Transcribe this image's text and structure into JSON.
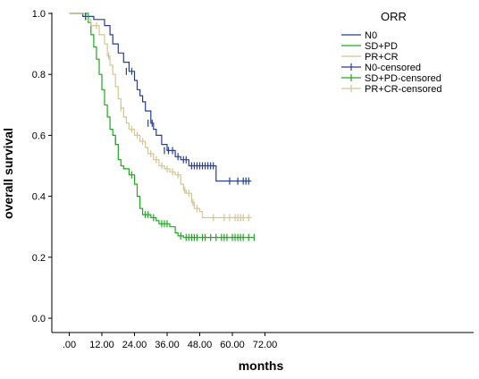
{
  "chart_data": {
    "type": "line",
    "subtype": "kaplan-meier step curves with censor marks",
    "title": "",
    "xlabel": "months",
    "ylabel": "overall survival",
    "xlim": [
      -2,
      72
    ],
    "ylim": [
      0.0,
      1.0
    ],
    "x_ticks": [
      0,
      12,
      24,
      36,
      48,
      60,
      72
    ],
    "x_tick_labels": [
      ".00",
      "12.00",
      "24.00",
      "36.00",
      "48.00",
      "60.00",
      "72.00"
    ],
    "y_ticks": [
      0.0,
      0.2,
      0.4,
      0.6,
      0.8,
      1.0
    ],
    "y_tick_labels": [
      "0.0",
      "0.2",
      "0.4",
      "0.6",
      "0.8",
      "1.0"
    ],
    "grid": false,
    "legend": {
      "title": "ORR",
      "placement": "top-right",
      "entries": [
        "N0",
        "SD+PD",
        "PR+CR",
        "N0-censored",
        "SD+PD-censored",
        "PR+CR-censored"
      ]
    },
    "series": [
      {
        "name": "N0",
        "color": "#2a3f8f",
        "steps": [
          [
            0,
            1.0
          ],
          [
            5,
            0.99
          ],
          [
            9,
            0.98
          ],
          [
            13,
            0.96
          ],
          [
            15,
            0.93
          ],
          [
            16,
            0.9
          ],
          [
            18,
            0.87
          ],
          [
            20,
            0.84
          ],
          [
            22,
            0.81
          ],
          [
            24,
            0.78
          ],
          [
            25,
            0.75
          ],
          [
            26,
            0.73
          ],
          [
            27,
            0.71
          ],
          [
            28,
            0.68
          ],
          [
            30,
            0.64
          ],
          [
            31,
            0.62
          ],
          [
            32,
            0.6
          ],
          [
            34,
            0.57
          ],
          [
            36,
            0.55
          ],
          [
            39,
            0.53
          ],
          [
            41,
            0.52
          ],
          [
            44,
            0.5
          ],
          [
            54,
            0.45
          ],
          [
            67,
            0.45
          ]
        ],
        "censored": [
          [
            6,
            0.99
          ],
          [
            21,
            0.81
          ],
          [
            23,
            0.81
          ],
          [
            29,
            0.64
          ],
          [
            30.5,
            0.64
          ],
          [
            35,
            0.55
          ],
          [
            36.5,
            0.55
          ],
          [
            38,
            0.55
          ],
          [
            40,
            0.53
          ],
          [
            42,
            0.52
          ],
          [
            43,
            0.52
          ],
          [
            45,
            0.5
          ],
          [
            46,
            0.5
          ],
          [
            47,
            0.5
          ],
          [
            48,
            0.5
          ],
          [
            49,
            0.5
          ],
          [
            50,
            0.5
          ],
          [
            51,
            0.5
          ],
          [
            52,
            0.5
          ],
          [
            53,
            0.5
          ],
          [
            59,
            0.45
          ],
          [
            62,
            0.45
          ],
          [
            64,
            0.45
          ],
          [
            65,
            0.45
          ],
          [
            66,
            0.45
          ]
        ]
      },
      {
        "name": "SD+PD",
        "color": "#1eaa1e",
        "steps": [
          [
            0,
            1.0
          ],
          [
            7,
            0.97
          ],
          [
            8,
            0.93
          ],
          [
            9,
            0.89
          ],
          [
            10,
            0.85
          ],
          [
            11,
            0.8
          ],
          [
            12,
            0.75
          ],
          [
            13,
            0.7
          ],
          [
            14,
            0.66
          ],
          [
            15,
            0.62
          ],
          [
            16,
            0.6
          ],
          [
            17,
            0.57
          ],
          [
            18,
            0.52
          ],
          [
            19,
            0.5
          ],
          [
            20,
            0.49
          ],
          [
            22,
            0.47
          ],
          [
            24,
            0.44
          ],
          [
            25,
            0.4
          ],
          [
            26,
            0.36
          ],
          [
            27,
            0.34
          ],
          [
            30,
            0.33
          ],
          [
            32,
            0.32
          ],
          [
            33,
            0.31
          ],
          [
            37,
            0.3
          ],
          [
            39,
            0.28
          ],
          [
            40,
            0.27
          ],
          [
            42,
            0.265
          ],
          [
            68,
            0.265
          ]
        ],
        "censored": [
          [
            17,
            0.58
          ],
          [
            23,
            0.47
          ],
          [
            28,
            0.34
          ],
          [
            29,
            0.34
          ],
          [
            31,
            0.33
          ],
          [
            34,
            0.31
          ],
          [
            35,
            0.31
          ],
          [
            36,
            0.31
          ],
          [
            41,
            0.27
          ],
          [
            43,
            0.265
          ],
          [
            44,
            0.265
          ],
          [
            45,
            0.265
          ],
          [
            46,
            0.265
          ],
          [
            47,
            0.265
          ],
          [
            49,
            0.265
          ],
          [
            50,
            0.265
          ],
          [
            52,
            0.265
          ],
          [
            54,
            0.265
          ],
          [
            56,
            0.265
          ],
          [
            57,
            0.265
          ],
          [
            58,
            0.265
          ],
          [
            60,
            0.265
          ],
          [
            61,
            0.265
          ],
          [
            62,
            0.265
          ],
          [
            63,
            0.265
          ],
          [
            64,
            0.265
          ],
          [
            66,
            0.265
          ],
          [
            68,
            0.265
          ]
        ]
      },
      {
        "name": "PR+CR",
        "color": "#d4c496",
        "steps": [
          [
            0,
            1.0
          ],
          [
            6,
            0.98
          ],
          [
            8,
            0.96
          ],
          [
            11,
            0.93
          ],
          [
            13,
            0.9
          ],
          [
            14,
            0.86
          ],
          [
            15,
            0.83
          ],
          [
            16,
            0.8
          ],
          [
            17,
            0.76
          ],
          [
            18,
            0.72
          ],
          [
            19,
            0.69
          ],
          [
            20,
            0.66
          ],
          [
            21,
            0.64
          ],
          [
            22,
            0.62
          ],
          [
            24,
            0.6
          ],
          [
            26,
            0.58
          ],
          [
            28,
            0.56
          ],
          [
            29,
            0.54
          ],
          [
            31,
            0.52
          ],
          [
            33,
            0.5
          ],
          [
            35,
            0.49
          ],
          [
            37,
            0.48
          ],
          [
            39,
            0.47
          ],
          [
            41,
            0.44
          ],
          [
            42,
            0.42
          ],
          [
            43,
            0.41
          ],
          [
            45,
            0.38
          ],
          [
            46,
            0.36
          ],
          [
            48,
            0.35
          ],
          [
            49,
            0.33
          ],
          [
            67,
            0.33
          ]
        ],
        "censored": [
          [
            10,
            0.96
          ],
          [
            14.5,
            0.86
          ],
          [
            19,
            0.69
          ],
          [
            23,
            0.62
          ],
          [
            25,
            0.6
          ],
          [
            27,
            0.58
          ],
          [
            30,
            0.54
          ],
          [
            32,
            0.52
          ],
          [
            34,
            0.5
          ],
          [
            36,
            0.49
          ],
          [
            38,
            0.48
          ],
          [
            40,
            0.47
          ],
          [
            42.5,
            0.42
          ],
          [
            44,
            0.41
          ],
          [
            45.5,
            0.38
          ],
          [
            47,
            0.36
          ],
          [
            53,
            0.33
          ],
          [
            57,
            0.33
          ],
          [
            59,
            0.33
          ],
          [
            61,
            0.33
          ],
          [
            62,
            0.33
          ],
          [
            63,
            0.33
          ],
          [
            64,
            0.33
          ],
          [
            66,
            0.33
          ]
        ]
      }
    ]
  }
}
